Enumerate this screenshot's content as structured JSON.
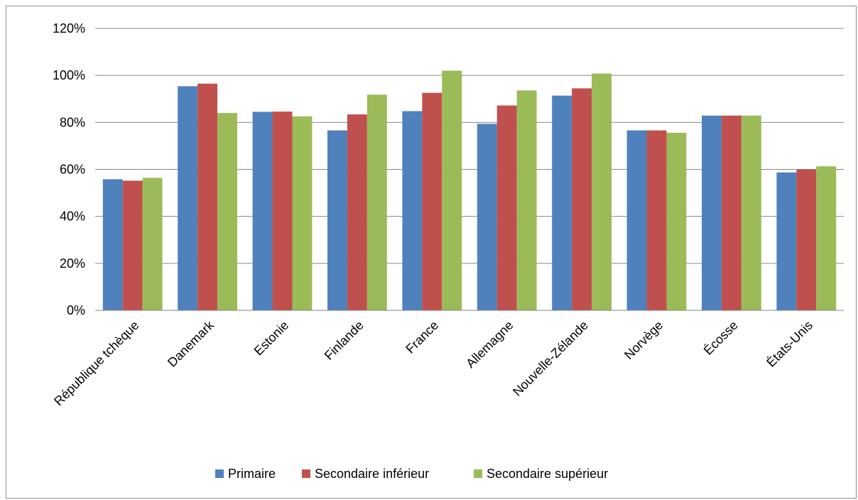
{
  "chart_data": {
    "type": "bar",
    "categories": [
      "République tchèque",
      "Danemark",
      "Estonie",
      "Finlande",
      "France",
      "Allemagne",
      "Nouvelle-Zélande",
      "Norvège",
      "Écosse",
      "États-Unis"
    ],
    "series": [
      {
        "name": "Primaire",
        "color": "#4f81bd",
        "values": [
          55.8,
          95.4,
          84.5,
          76.6,
          84.8,
          79.4,
          91.4,
          76.6,
          82.9,
          58.7
        ]
      },
      {
        "name": "Secondaire inférieur",
        "color": "#c0504d",
        "values": [
          55.2,
          96.5,
          84.6,
          83.4,
          92.6,
          87.2,
          94.5,
          76.6,
          82.9,
          60.0
        ]
      },
      {
        "name": "Secondaire supérieur",
        "color": "#9bbb59",
        "values": [
          56.4,
          84.0,
          82.6,
          91.8,
          102.0,
          93.6,
          100.8,
          75.6,
          82.9,
          61.3
        ]
      }
    ],
    "y_ticks": [
      "0%",
      "20%",
      "40%",
      "60%",
      "80%",
      "100%",
      "120%"
    ],
    "ylim": [
      0,
      120
    ],
    "grid": true,
    "legend_position": "bottom",
    "xlabel": "",
    "ylabel": "",
    "title": ""
  }
}
